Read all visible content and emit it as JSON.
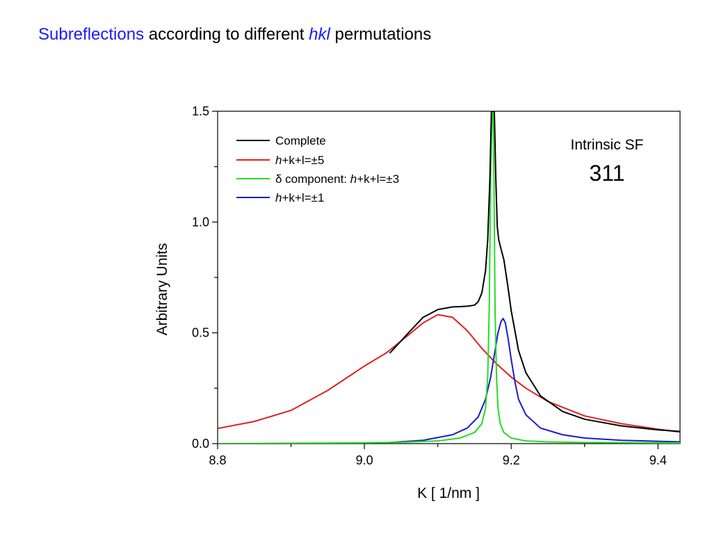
{
  "header": {
    "title_parts": [
      "Subreflections",
      " according to different ",
      "hkl",
      " permutations"
    ]
  },
  "colors": {
    "title_accent": "#1a1aff",
    "complete": "#000000",
    "hkl5": "#e02020",
    "delta3": "#22dd22",
    "hkl1": "#1a1acc"
  },
  "chart_data": {
    "type": "line",
    "xlabel": "K  [ 1/nm ]",
    "ylabel": "Arbitrary Units",
    "xlim": [
      8.8,
      9.43
    ],
    "ylim": [
      0.0,
      1.5
    ],
    "x_ticks": [
      "8.8",
      "9.0",
      "9.2",
      "9.4"
    ],
    "y_ticks": [
      "0.0",
      "0.5",
      "1.0",
      "1.5"
    ],
    "grid": false,
    "legend_position": "top-left",
    "legend": [
      {
        "pre": "",
        "ital": "",
        "post": "Complete"
      },
      {
        "pre": "",
        "ital": "h",
        "post": "+k+l=±5"
      },
      {
        "pre": "δ  component: ",
        "ital": "h",
        "post": "+k+l=±3"
      },
      {
        "pre": "",
        "ital": "h",
        "post": "+k+l=±1"
      }
    ],
    "annotations": [
      "Intrinsic SF",
      "311"
    ],
    "series": [
      {
        "key": "complete",
        "x": [
          9.035,
          9.06,
          9.08,
          9.1,
          9.12,
          9.13,
          9.14,
          9.15,
          9.155,
          9.16,
          9.165,
          9.168,
          9.171,
          9.173,
          9.175,
          9.177,
          9.179,
          9.181,
          9.183,
          9.186,
          9.19,
          9.195,
          9.2,
          9.21,
          9.22,
          9.24,
          9.27,
          9.3,
          9.35,
          9.4,
          9.43
        ],
        "y": [
          0.41,
          0.5,
          0.57,
          0.605,
          0.617,
          0.618,
          0.62,
          0.625,
          0.64,
          0.68,
          0.78,
          0.92,
          1.2,
          1.5,
          1.5,
          1.5,
          1.2,
          0.98,
          0.92,
          0.88,
          0.83,
          0.72,
          0.6,
          0.42,
          0.32,
          0.215,
          0.145,
          0.11,
          0.08,
          0.062,
          0.055
        ]
      },
      {
        "key": "hkl5",
        "x": [
          8.8,
          8.85,
          8.9,
          8.95,
          9.0,
          9.03,
          9.06,
          9.08,
          9.1,
          9.12,
          9.14,
          9.16,
          9.18,
          9.2,
          9.22,
          9.25,
          9.3,
          9.35,
          9.4,
          9.43
        ],
        "y": [
          0.068,
          0.1,
          0.15,
          0.24,
          0.35,
          0.41,
          0.49,
          0.545,
          0.582,
          0.57,
          0.51,
          0.43,
          0.36,
          0.3,
          0.25,
          0.19,
          0.125,
          0.09,
          0.065,
          0.052
        ]
      },
      {
        "key": "delta3",
        "x": [
          8.8,
          8.9,
          9.0,
          9.05,
          9.1,
          9.13,
          9.15,
          9.16,
          9.165,
          9.168,
          9.17,
          9.172,
          9.1735,
          9.175,
          9.1765,
          9.178,
          9.18,
          9.182,
          9.185,
          9.19,
          9.2,
          9.22,
          9.25,
          9.3,
          9.43
        ],
        "y": [
          0.0,
          0.002,
          0.004,
          0.006,
          0.012,
          0.025,
          0.05,
          0.09,
          0.16,
          0.3,
          0.6,
          1.2,
          1.5,
          1.5,
          1.2,
          0.6,
          0.3,
          0.16,
          0.09,
          0.05,
          0.025,
          0.012,
          0.008,
          0.005,
          0.003
        ]
      },
      {
        "key": "hkl1",
        "x": [
          9.035,
          9.08,
          9.12,
          9.14,
          9.155,
          9.165,
          9.172,
          9.178,
          9.182,
          9.186,
          9.189,
          9.192,
          9.196,
          9.2,
          9.205,
          9.21,
          9.22,
          9.24,
          9.27,
          9.3,
          9.35,
          9.43
        ],
        "y": [
          0.005,
          0.015,
          0.04,
          0.07,
          0.12,
          0.2,
          0.3,
          0.42,
          0.5,
          0.55,
          0.565,
          0.545,
          0.47,
          0.38,
          0.28,
          0.2,
          0.13,
          0.07,
          0.04,
          0.025,
          0.015,
          0.008
        ]
      }
    ]
  }
}
